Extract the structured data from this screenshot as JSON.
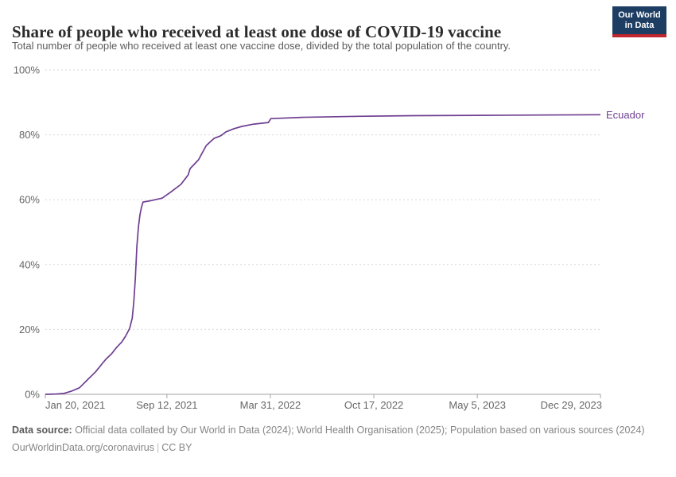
{
  "header": {
    "title": "Share of people who received at least one dose of COVID-19 vaccine",
    "subtitle": "Total number of people who received at least one vaccine dose, divided by the total population of the country.",
    "logo": {
      "line1": "Our World",
      "line2": "in Data",
      "bg_color": "#1d3d63",
      "accent_color": "#c0262d"
    }
  },
  "chart_data": {
    "type": "line",
    "title": "Share of people who received at least one dose of COVID-19 vaccine",
    "x_axis": {
      "start": "2021-01-20",
      "end": "2023-12-29",
      "ticks": [
        {
          "label": "Jan 20, 2021",
          "date": "2021-01-20",
          "align": "start"
        },
        {
          "label": "Sep 12, 2021",
          "date": "2021-09-12",
          "align": "middle"
        },
        {
          "label": "Mar 31, 2022",
          "date": "2022-03-31",
          "align": "middle"
        },
        {
          "label": "Oct 17, 2022",
          "date": "2022-10-17",
          "align": "middle"
        },
        {
          "label": "May 5, 2023",
          "date": "2023-05-05",
          "align": "middle"
        },
        {
          "label": "Dec 29, 2023",
          "date": "2023-12-29",
          "align": "end"
        }
      ]
    },
    "y_axis": {
      "min": 0,
      "max": 100,
      "unit": "%",
      "ticks": [
        0,
        20,
        40,
        60,
        80,
        100
      ],
      "grid": true
    },
    "legend_position": "end-of-line",
    "series": [
      {
        "name": "Ecuador",
        "color": "#6d3e91",
        "points": [
          [
            "2021-01-20",
            0.0
          ],
          [
            "2021-02-10",
            0.1
          ],
          [
            "2021-02-25",
            0.3
          ],
          [
            "2021-03-12",
            1.0
          ],
          [
            "2021-03-27",
            2.0
          ],
          [
            "2021-04-11",
            4.4
          ],
          [
            "2021-04-27",
            6.9
          ],
          [
            "2021-05-09",
            9.3
          ],
          [
            "2021-05-17",
            10.8
          ],
          [
            "2021-05-28",
            12.5
          ],
          [
            "2021-06-07",
            14.5
          ],
          [
            "2021-06-17",
            16.2
          ],
          [
            "2021-06-24",
            17.9
          ],
          [
            "2021-07-02",
            20.3
          ],
          [
            "2021-07-07",
            23.5
          ],
          [
            "2021-07-10",
            28.4
          ],
          [
            "2021-07-13",
            35.8
          ],
          [
            "2021-07-16",
            45.6
          ],
          [
            "2021-07-19",
            51.7
          ],
          [
            "2021-07-22",
            55.4
          ],
          [
            "2021-07-25",
            57.8
          ],
          [
            "2021-07-28",
            59.3
          ],
          [
            "2021-08-12",
            59.7
          ],
          [
            "2021-09-03",
            60.5
          ],
          [
            "2021-09-19",
            62.3
          ],
          [
            "2021-10-09",
            64.7
          ],
          [
            "2021-10-23",
            67.6
          ],
          [
            "2021-10-27",
            69.6
          ],
          [
            "2021-11-12",
            72.3
          ],
          [
            "2021-11-27",
            76.7
          ],
          [
            "2021-12-12",
            78.9
          ],
          [
            "2021-12-25",
            79.7
          ],
          [
            "2022-01-04",
            80.9
          ],
          [
            "2022-01-20",
            81.9
          ],
          [
            "2022-02-04",
            82.6
          ],
          [
            "2022-02-27",
            83.3
          ],
          [
            "2022-03-27",
            83.8
          ],
          [
            "2022-04-01",
            85.0
          ],
          [
            "2022-05-31",
            85.4
          ],
          [
            "2022-09-15",
            85.7
          ],
          [
            "2023-01-01",
            85.9
          ],
          [
            "2023-05-05",
            86.0
          ],
          [
            "2023-09-05",
            86.1
          ],
          [
            "2023-12-29",
            86.2
          ]
        ]
      }
    ]
  },
  "footer": {
    "source_label": "Data source:",
    "source_text": " Official data collated by Our World in Data (2024); World Health Organisation (2025); Population based on various sources (2024)",
    "link": "OurWorldinData.org/coronavirus",
    "separator": "|",
    "license": "CC BY"
  }
}
